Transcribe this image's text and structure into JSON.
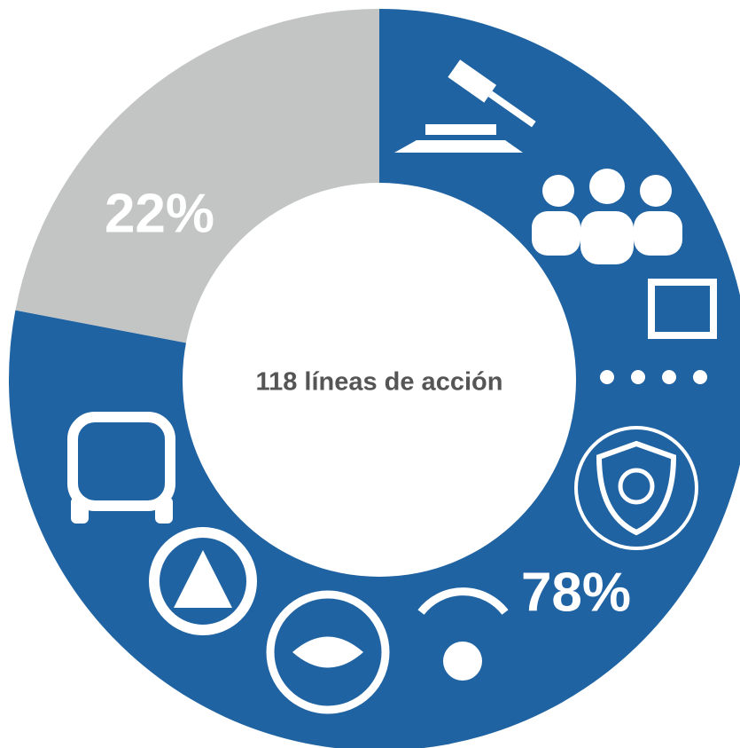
{
  "chart_data": {
    "type": "pie",
    "donut": true,
    "center_label": "118 líneas de acción",
    "categories": [
      null,
      null
    ],
    "values": [
      78,
      22
    ],
    "value_labels": [
      "78%",
      "22%"
    ],
    "colors": [
      "#1f63a3",
      "#c3c4c4"
    ]
  }
}
